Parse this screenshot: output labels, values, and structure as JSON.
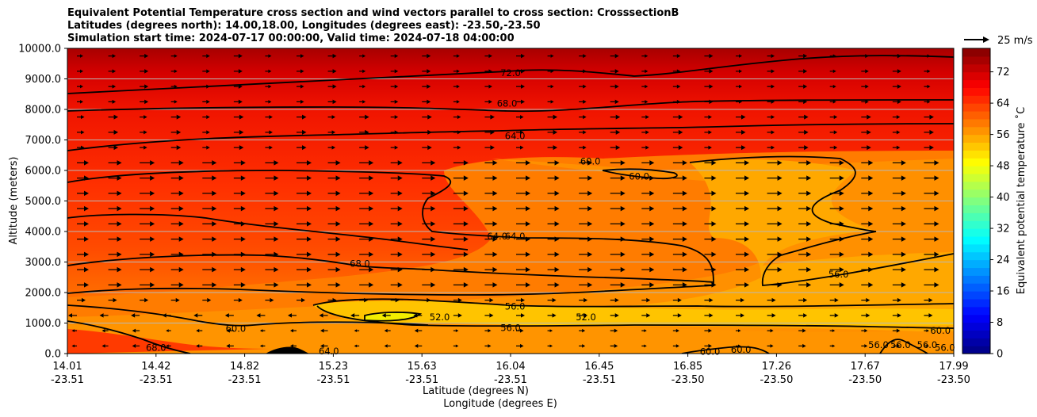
{
  "chart_data": {
    "type": "heatmap",
    "title_lines": [
      "Equivalent Potential Temperature cross section and wind vectors parallel to cross section: CrosssectionB",
      "Latitudes (degrees north): 14.00,18.00, Longitudes (degrees east): -23.50,-23.50",
      "Simulation start time: 2024-07-17 00:00:00, Valid time: 2024-07-18 04:00:00"
    ],
    "xlabel_lines": [
      "Latitude (degrees N)",
      "Longitude (degrees E)"
    ],
    "ylabel": "Altitude (meters)",
    "colorbar_label": "Equivalent potential temperature ˚C",
    "quiver_key": "25 m/s",
    "x_ticks": [
      {
        "lat": "14.01",
        "lon": "-23.51"
      },
      {
        "lat": "14.42",
        "lon": "-23.51"
      },
      {
        "lat": "14.82",
        "lon": "-23.51"
      },
      {
        "lat": "15.23",
        "lon": "-23.51"
      },
      {
        "lat": "15.63",
        "lon": "-23.51"
      },
      {
        "lat": "16.04",
        "lon": "-23.51"
      },
      {
        "lat": "16.45",
        "lon": "-23.51"
      },
      {
        "lat": "16.85",
        "lon": "-23.50"
      },
      {
        "lat": "17.26",
        "lon": "-23.50"
      },
      {
        "lat": "17.67",
        "lon": "-23.50"
      },
      {
        "lat": "17.99",
        "lon": "-23.50"
      }
    ],
    "x_tick_positions": [
      0,
      0.1,
      0.2,
      0.3,
      0.4,
      0.5,
      0.6,
      0.7,
      0.8,
      0.9,
      1.0
    ],
    "y_ticks": [
      "0.0",
      "1000.0",
      "2000.0",
      "3000.0",
      "4000.0",
      "5000.0",
      "6000.0",
      "7000.0",
      "8000.0",
      "9000.0",
      "10000.0"
    ],
    "ylim": [
      0,
      10000
    ],
    "colorbar_ticks": [
      "0",
      "8",
      "16",
      "24",
      "32",
      "40",
      "48",
      "56",
      "64",
      "72"
    ],
    "colorbar_range": [
      0,
      78
    ],
    "grid": "horizontal",
    "contour_labels": [
      {
        "text": "72.0",
        "x": 0.5,
        "y": 9200
      },
      {
        "text": "68.0",
        "x": 0.496,
        "y": 8200
      },
      {
        "text": "64.0",
        "x": 0.505,
        "y": 7130
      },
      {
        "text": "60.0",
        "x": 0.59,
        "y": 6300
      },
      {
        "text": "60.0",
        "x": 0.645,
        "y": 5800
      },
      {
        "text": "64.0",
        "x": 0.485,
        "y": 3850
      },
      {
        "text": "64.0",
        "x": 0.505,
        "y": 3850
      },
      {
        "text": "68.0",
        "x": 0.33,
        "y": 2950
      },
      {
        "text": "56.0",
        "x": 0.87,
        "y": 2600
      },
      {
        "text": "56.0",
        "x": 0.505,
        "y": 1550
      },
      {
        "text": "52.0",
        "x": 0.42,
        "y": 1200
      },
      {
        "text": "52.0",
        "x": 0.585,
        "y": 1200
      },
      {
        "text": "56.0",
        "x": 0.5,
        "y": 850
      },
      {
        "text": "60.0",
        "x": 0.19,
        "y": 820
      },
      {
        "text": "68.0",
        "x": 0.1,
        "y": 200
      },
      {
        "text": "64.0",
        "x": 0.295,
        "y": 80
      },
      {
        "text": "60.0",
        "x": 0.725,
        "y": 60
      },
      {
        "text": "60.0",
        "x": 0.76,
        "y": 130
      },
      {
        "text": "56.0",
        "x": 0.915,
        "y": 280
      },
      {
        "text": "56.0",
        "x": 0.94,
        "y": 280
      },
      {
        "text": "56.0",
        "x": 0.97,
        "y": 280
      },
      {
        "text": "60.0",
        "x": 0.985,
        "y": 750
      },
      {
        "text": "56.0",
        "x": 0.99,
        "y": 200
      }
    ],
    "colors": {
      "theta_72_plus": "#b00000",
      "theta_68": "#e00a00",
      "theta_64": "#ff2a00",
      "theta_60": "#ff4a00",
      "theta_58": "#ff6a00",
      "theta_56": "#ff8800",
      "theta_54": "#ffa000",
      "theta_52": "#ffbf00",
      "theta_48": "#f5f000",
      "terrain": "#000000"
    }
  }
}
